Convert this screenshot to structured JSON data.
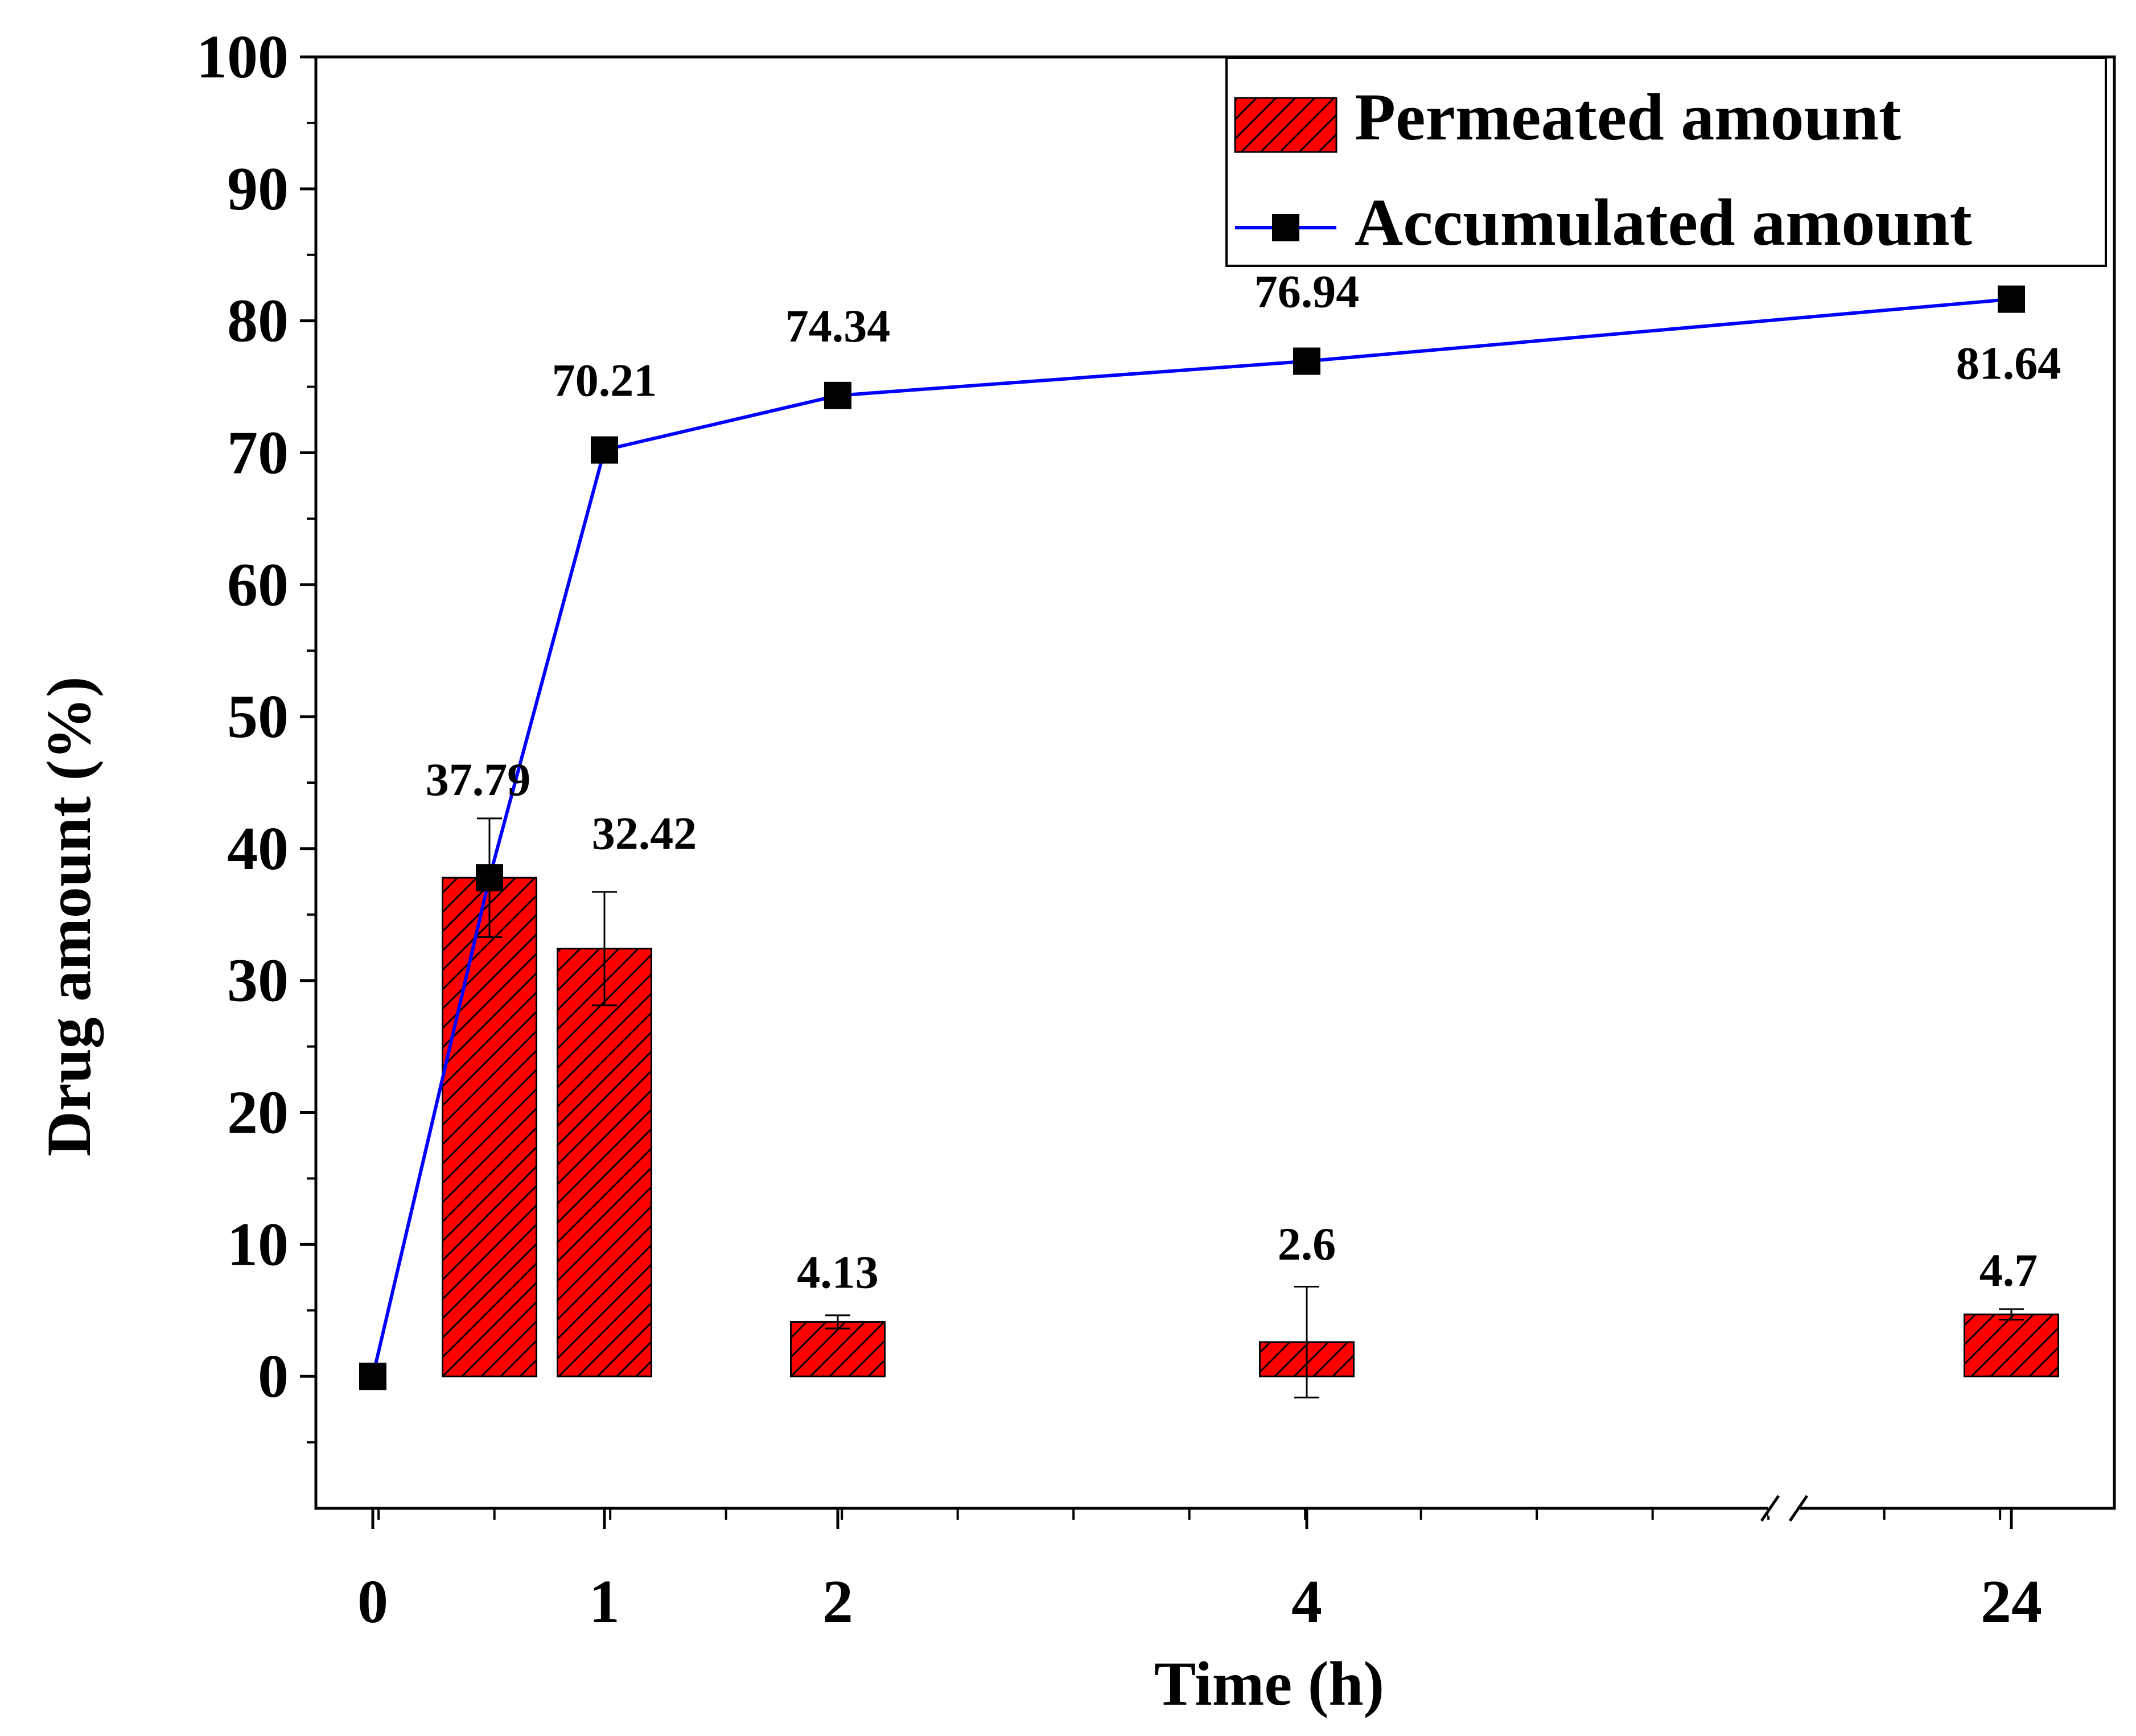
{
  "chart_data": {
    "type": "bar+line",
    "title": "",
    "xlabel": "Time (h)",
    "ylabel": "Drug amount (%)",
    "ylim": [
      -10,
      100
    ],
    "yticks": [
      0,
      10,
      20,
      30,
      40,
      50,
      60,
      70,
      80,
      90,
      100
    ],
    "xtick_labels": [
      {
        "x": 0,
        "label": "0"
      },
      {
        "x": 1,
        "label": "1"
      },
      {
        "x": 2,
        "label": "2"
      },
      {
        "x": 4,
        "label": "4"
      },
      {
        "x": 24,
        "label": "24"
      }
    ],
    "x_axis_break": "between 4 and 24",
    "series": [
      {
        "name": "Permeated amount",
        "kind": "bar",
        "color": "#ff0000",
        "hatch": "diagonal",
        "points": [
          {
            "x": 0.5,
            "value": 37.79,
            "error": 4.5,
            "label": "37.79"
          },
          {
            "x": 1,
            "value": 32.42,
            "error": 4.3,
            "label": "32.42"
          },
          {
            "x": 2,
            "value": 4.13,
            "error": 0.5,
            "label": "4.13"
          },
          {
            "x": 4,
            "value": 2.6,
            "error": 4.2,
            "label": "2.6"
          },
          {
            "x": 24,
            "value": 4.7,
            "error": 0.4,
            "label": "4.7"
          }
        ]
      },
      {
        "name": "Accumulated amount",
        "kind": "line",
        "color": "#0000ff",
        "marker": "square",
        "points": [
          {
            "x": 0,
            "value": 0
          },
          {
            "x": 0.5,
            "value": 37.79,
            "label": "37.79"
          },
          {
            "x": 1,
            "value": 70.21,
            "label": "70.21"
          },
          {
            "x": 2,
            "value": 74.34,
            "label": "74.34"
          },
          {
            "x": 4,
            "value": 76.94,
            "label": "76.94"
          },
          {
            "x": 24,
            "value": 81.64,
            "label": "81.64"
          }
        ]
      }
    ],
    "legend": {
      "position": "top-right",
      "entries": [
        "Permeated amount",
        "Accumulated amount"
      ]
    }
  }
}
